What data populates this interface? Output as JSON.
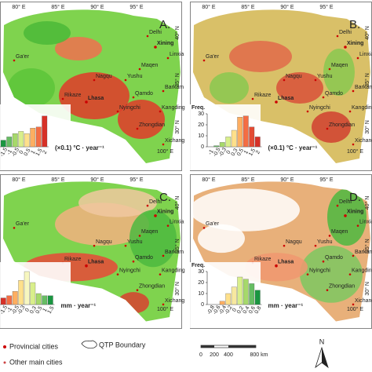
{
  "panels": [
    {
      "label": "A.",
      "unit": "(×0.1) °C · year⁻¹",
      "hist": {
        "bins": [
          "-1.5",
          "-1",
          "-0.5",
          "0",
          "0.5",
          "1",
          "1.5",
          "2"
        ],
        "values": [
          6,
          9,
          12,
          14,
          12,
          17,
          18,
          28
        ],
        "colors": [
          "#1a9641",
          "#66bd63",
          "#a6d96a",
          "#d9ef8b",
          "#fee08b",
          "#fdae61",
          "#f46d43",
          "#d73027"
        ],
        "ylim": [
          0,
          30
        ]
      }
    },
    {
      "label": "B.",
      "unit": "(×0.1) °C · year⁻¹",
      "hist": {
        "ylabel": "Freq.",
        "bins": [
          "-1",
          "-0.5",
          "-0.3",
          "0",
          "0.3",
          "0.5",
          "1",
          "1.5",
          "2"
        ],
        "values": [
          0,
          1,
          4,
          9,
          15,
          27,
          28,
          18,
          9
        ],
        "colors": [
          "#1a9641",
          "#66bd63",
          "#a6d96a",
          "#d9ef8b",
          "#fee08b",
          "#fdae61",
          "#f46d43",
          "#e34a33",
          "#d73027"
        ],
        "ylim": [
          0,
          30
        ],
        "yticks": [
          0,
          10,
          20,
          30
        ]
      }
    },
    {
      "label": "C.",
      "unit": "mm · year⁻¹",
      "hist": {
        "bins": [
          "-1.5",
          "-1",
          "-0.5",
          "-0.3",
          "0",
          "0.3",
          "0.5",
          "1",
          "1.5"
        ],
        "values": [
          6,
          8,
          12,
          22,
          30,
          20,
          10,
          8,
          8
        ],
        "colors": [
          "#d73027",
          "#f46d43",
          "#fdae61",
          "#fee08b",
          "#f7f7c0",
          "#d9ef8b",
          "#a6d96a",
          "#66bd63",
          "#1a9641"
        ],
        "ylim": [
          0,
          30
        ]
      }
    },
    {
      "label": "D.",
      "unit": "mm · year⁻¹",
      "hist": {
        "ylabel": "Freq.",
        "bins": [
          "-0.8",
          "-0.6",
          "-0.4",
          "-0.2",
          "0",
          "0.2",
          "0.4",
          "0.6",
          "0.8"
        ],
        "values": [
          0,
          0,
          3,
          10,
          16,
          25,
          23,
          19,
          13
        ],
        "colors": [
          "#d73027",
          "#f46d43",
          "#fdae61",
          "#fee08b",
          "#f7e8a0",
          "#d9ef8b",
          "#a6d96a",
          "#66bd63",
          "#1a9641"
        ],
        "ylim": [
          0,
          30
        ],
        "yticks": [
          0,
          10,
          20,
          30
        ]
      }
    }
  ],
  "graticule": {
    "top": [
      "80° E",
      "85° E",
      "90° E",
      "95° E"
    ],
    "corner": "100° E",
    "right": [
      "40° N",
      "35° N",
      "30° N"
    ]
  },
  "cities": [
    {
      "name": "Ga'er",
      "provincial": false
    },
    {
      "name": "Delhi",
      "provincial": false
    },
    {
      "name": "Xining",
      "provincial": true
    },
    {
      "name": "Linxia",
      "provincial": false
    },
    {
      "name": "Maqen",
      "provincial": false
    },
    {
      "name": "Yushu",
      "provincial": false
    },
    {
      "name": "Nagqu",
      "provincial": false
    },
    {
      "name": "Qamdo",
      "provincial": false
    },
    {
      "name": "Barkam",
      "provincial": false
    },
    {
      "name": "Lhasa",
      "provincial": true
    },
    {
      "name": "Rikaze",
      "provincial": false
    },
    {
      "name": "Nyingchi",
      "provincial": false
    },
    {
      "name": "Kangding",
      "provincial": false
    },
    {
      "name": "Zhongdian",
      "provincial": false
    },
    {
      "name": "Xichang",
      "provincial": false
    }
  ],
  "legend": {
    "provincial": "Provincial cities",
    "other": "Other main cities",
    "boundary": "QTP Boundary",
    "scale": [
      "0",
      "200",
      "400",
      "800 km"
    ],
    "north": "N"
  }
}
